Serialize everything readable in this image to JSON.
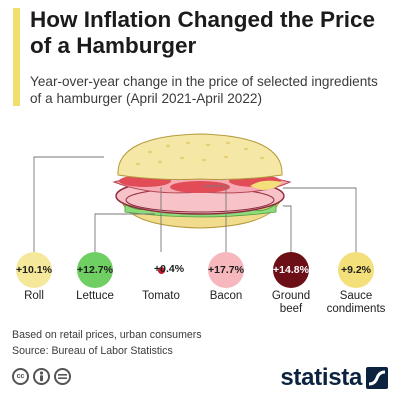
{
  "header": {
    "title": "How Inflation Changed the Price of a Hamburger",
    "subtitle": "Year-over-year change in the price of selected ingredients of a hamburger (April 2021-April 2022)"
  },
  "chart_data": {
    "type": "bubble",
    "title": "How Inflation Changed the Price of a Hamburger",
    "subtitle": "Year-over-year change in the price of selected ingredients of a hamburger (April 2021-April 2022)",
    "unit": "%",
    "categories": [
      "Roll",
      "Lettuce",
      "Tomato",
      "Bacon",
      "Ground beef",
      "Sauce condiments"
    ],
    "values": [
      10.1,
      12.7,
      0.4,
      17.7,
      14.8,
      9.2
    ],
    "value_labels": [
      "+10.1%",
      "+12.7%",
      "+0.4%",
      "+17.7%",
      "+14.8%",
      "+9.2%"
    ],
    "colors": [
      "#f5e89b",
      "#6fcf63",
      "#c01b2a",
      "#f7b8bd",
      "#6d0f17",
      "#f3e07a"
    ],
    "label_colors": [
      "#1e1e1e",
      "#1e1e1e",
      "#1e1e1e",
      "#1e1e1e",
      "#ffffff",
      "#1e1e1e"
    ],
    "label_placement": [
      "inside",
      "inside",
      "right",
      "inside",
      "inside",
      "inside"
    ]
  },
  "footer": {
    "note": "Based on retail prices, urban consumers",
    "source": "Source: Bureau of Labor Statistics",
    "brand": "statista",
    "icons": [
      "cc-icon",
      "person-icon",
      "equals-icon"
    ]
  }
}
